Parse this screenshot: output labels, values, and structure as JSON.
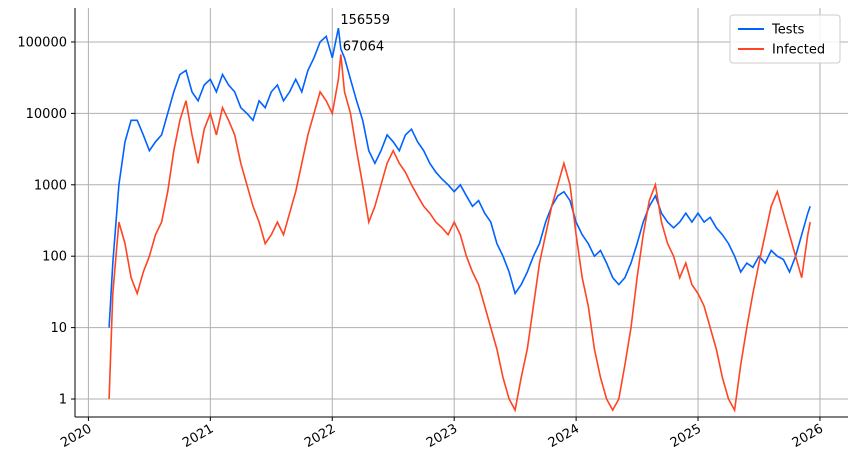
{
  "chart_data": {
    "type": "line",
    "log_y": true,
    "grid": true,
    "legend": "upper right",
    "annotations": [
      "156559",
      "67064"
    ],
    "x": [
      2020.17,
      2020.2,
      2020.25,
      2020.3,
      2020.35,
      2020.4,
      2020.45,
      2020.5,
      2020.55,
      2020.6,
      2020.65,
      2020.7,
      2020.75,
      2020.8,
      2020.85,
      2020.9,
      2020.95,
      2021.0,
      2021.05,
      2021.1,
      2021.15,
      2021.2,
      2021.25,
      2021.3,
      2021.35,
      2021.4,
      2021.45,
      2021.5,
      2021.55,
      2021.6,
      2021.65,
      2021.7,
      2021.75,
      2021.8,
      2021.85,
      2021.9,
      2021.95,
      2022.0,
      2022.05,
      2022.07,
      2022.1,
      2022.15,
      2022.2,
      2022.25,
      2022.3,
      2022.35,
      2022.4,
      2022.45,
      2022.5,
      2022.55,
      2022.6,
      2022.65,
      2022.7,
      2022.75,
      2022.8,
      2022.85,
      2022.9,
      2022.95,
      2023.0,
      2023.05,
      2023.1,
      2023.15,
      2023.2,
      2023.25,
      2023.3,
      2023.35,
      2023.4,
      2023.45,
      2023.5,
      2023.55,
      2023.6,
      2023.65,
      2023.7,
      2023.75,
      2023.8,
      2023.85,
      2023.9,
      2023.95,
      2024.0,
      2024.05,
      2024.1,
      2024.15,
      2024.2,
      2024.25,
      2024.3,
      2024.35,
      2024.4,
      2024.45,
      2024.5,
      2024.55,
      2024.6,
      2024.65,
      2024.7,
      2024.75,
      2024.8,
      2024.85,
      2024.9,
      2024.95,
      2025.0,
      2025.05,
      2025.1,
      2025.15,
      2025.2,
      2025.25,
      2025.3,
      2025.35,
      2025.4,
      2025.45,
      2025.5,
      2025.55,
      2025.6,
      2025.65,
      2025.7,
      2025.75,
      2025.8,
      2025.85,
      2025.9,
      2025.92
    ],
    "series": [
      {
        "name": "Tests",
        "color": "#0062ff",
        "values": [
          10,
          80,
          1000,
          4000,
          8000,
          8000,
          5000,
          3000,
          4000,
          5000,
          10000,
          20000,
          35000,
          40000,
          20000,
          15000,
          25000,
          30000,
          20000,
          35000,
          25000,
          20000,
          12000,
          10000,
          8000,
          15000,
          12000,
          20000,
          25000,
          15000,
          20000,
          30000,
          20000,
          40000,
          60000,
          100000,
          120000,
          60000,
          156559,
          80000,
          60000,
          30000,
          15000,
          8000,
          3000,
          2000,
          3000,
          5000,
          4000,
          3000,
          5000,
          6000,
          4000,
          3000,
          2000,
          1500,
          1200,
          1000,
          800,
          1000,
          700,
          500,
          600,
          400,
          300,
          150,
          100,
          60,
          30,
          40,
          60,
          100,
          150,
          300,
          500,
          700,
          800,
          600,
          300,
          200,
          150,
          100,
          120,
          80,
          50,
          40,
          50,
          80,
          150,
          300,
          500,
          700,
          400,
          300,
          250,
          300,
          400,
          300,
          400,
          300,
          350,
          250,
          200,
          150,
          100,
          60,
          80,
          70,
          100,
          80,
          120,
          100,
          90,
          60,
          100,
          200,
          400,
          500
        ]
      },
      {
        "name": "Infected",
        "color": "#ff4422",
        "values": [
          1,
          30,
          300,
          150,
          50,
          30,
          60,
          100,
          200,
          300,
          800,
          3000,
          8000,
          15000,
          5000,
          2000,
          6000,
          10000,
          5000,
          12000,
          8000,
          5000,
          2000,
          1000,
          500,
          300,
          150,
          200,
          300,
          200,
          400,
          800,
          2000,
          5000,
          10000,
          20000,
          15000,
          10000,
          30000,
          67064,
          20000,
          10000,
          3000,
          1000,
          300,
          500,
          1000,
          2000,
          3000,
          2000,
          1500,
          1000,
          700,
          500,
          400,
          300,
          250,
          200,
          300,
          200,
          100,
          60,
          40,
          20,
          10,
          5,
          2,
          1,
          0.7,
          2,
          5,
          20,
          80,
          200,
          500,
          1000,
          2000,
          1000,
          200,
          50,
          20,
          5,
          2,
          1,
          0.7,
          1,
          3,
          10,
          50,
          200,
          600,
          1000,
          300,
          150,
          100,
          50,
          80,
          40,
          30,
          20,
          10,
          5,
          2,
          1,
          0.7,
          3,
          10,
          30,
          80,
          200,
          500,
          800,
          400,
          200,
          100,
          50,
          200,
          300
        ]
      }
    ],
    "xlim": [
      2019.89,
      2026.23
    ],
    "xticks": [
      2020,
      2021,
      2022,
      2023,
      2024,
      2025,
      2026
    ],
    "ylim": [
      0.56,
      299000
    ],
    "yticks": [
      1,
      10,
      100,
      1000,
      10000,
      100000
    ]
  }
}
